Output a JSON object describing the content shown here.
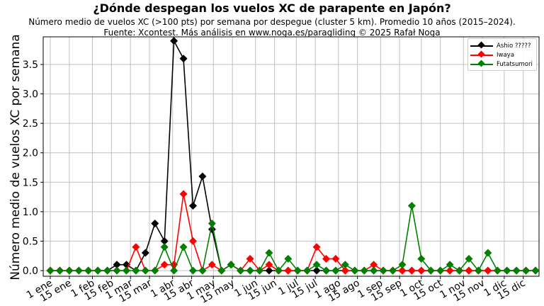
{
  "header": {
    "title": "¿Dónde despegan los vuelos XC de parapente en Japón?",
    "subtitle_line1": "Número medio de vuelos XC (>100 pts) por semana por despegue (cluster 5 km). Promedio 10 años (2015–2024).",
    "subtitle_line2": "Fuente: Xcontest. Más análisis en www.noga.es/paragliding © 2025 Rafał Noga"
  },
  "chart_data": {
    "type": "line",
    "title": "¿Dónde despegan los vuelos XC de parapente en Japón?",
    "xlabel": "",
    "ylabel": "Número medio de vuelos XC por semana",
    "ylim": [
      -0.05,
      3.95
    ],
    "grid": true,
    "legend_position": "upper right",
    "x_tick_labels": [
      "1 ene",
      "15 ene",
      "1 feb",
      "15 feb",
      "1 mar",
      "15 mar",
      "1 abr",
      "15 abr",
      "1 may",
      "15 may",
      "1 jun",
      "15 jun",
      "1 jul",
      "15 jul",
      "1 ago",
      "15 ago",
      "1 sep",
      "15 sep",
      "1 oct",
      "15 oct",
      "1 nov",
      "15 nov",
      "1 dic",
      "15 dic"
    ],
    "y_tick_labels": [
      "0.0",
      "0.5",
      "1.0",
      "1.5",
      "2.0",
      "2.5",
      "3.0",
      "3.5"
    ],
    "x_weeks": [
      1,
      2,
      3,
      4,
      5,
      6,
      7,
      8,
      9,
      10,
      11,
      12,
      13,
      14,
      15,
      16,
      17,
      18,
      19,
      20,
      21,
      22,
      23,
      24,
      25,
      26,
      27,
      28,
      29,
      30,
      31,
      32,
      33,
      34,
      35,
      36,
      37,
      38,
      39,
      40,
      41,
      42,
      43,
      44,
      45,
      46,
      47,
      48,
      49,
      50,
      51,
      52
    ],
    "series": [
      {
        "name": "Ashio ?????",
        "color": "#000000",
        "values": [
          0,
          0,
          0,
          0,
          0,
          0,
          0,
          0.1,
          0.1,
          0,
          0.3,
          0.8,
          0.5,
          3.9,
          3.6,
          1.1,
          1.6,
          0.7,
          0,
          0.1,
          0,
          0,
          0,
          0,
          0,
          0,
          0,
          0,
          0,
          0,
          0,
          0,
          0,
          0,
          0,
          0,
          0,
          0,
          0,
          0,
          0,
          0,
          0,
          0,
          0,
          0,
          0,
          0,
          0,
          0,
          0,
          0
        ]
      },
      {
        "name": "Iwaya",
        "color": "#ff0000",
        "values": [
          0,
          0,
          0,
          0,
          0,
          0,
          0,
          0,
          0,
          0.4,
          0,
          0,
          0.1,
          0.1,
          1.3,
          0.5,
          0,
          0.1,
          0,
          0.1,
          0,
          0.2,
          0,
          0.1,
          0,
          0,
          0,
          0,
          0.4,
          0.2,
          0.2,
          0,
          0,
          0,
          0.1,
          0,
          0,
          0,
          0,
          0,
          0,
          0,
          0,
          0,
          0,
          0,
          0,
          0,
          0,
          0,
          0,
          0
        ]
      },
      {
        "name": "Futatsumori",
        "color": "#008000",
        "values": [
          0,
          0,
          0,
          0,
          0,
          0,
          0,
          0,
          0,
          0,
          0,
          0,
          0.4,
          0,
          0.4,
          0,
          0,
          0.8,
          0,
          0.1,
          0,
          0,
          0,
          0.3,
          0,
          0.2,
          0,
          0,
          0.1,
          0,
          0,
          0.1,
          0,
          0,
          0,
          0,
          0,
          0.1,
          1.1,
          0.2,
          0,
          0,
          0.1,
          0,
          0.2,
          0,
          0.3,
          0,
          0,
          0,
          0,
          0
        ]
      }
    ]
  }
}
